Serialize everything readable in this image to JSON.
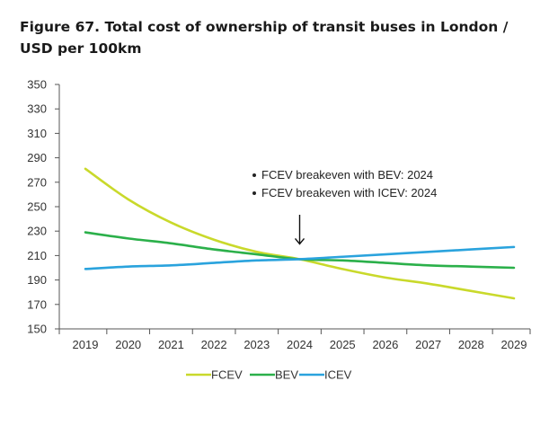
{
  "title": "Figure 67. Total cost of ownership of transit buses in London / USD per 100km",
  "chart_data": {
    "type": "line",
    "title": "Figure 67. Total cost of ownership of transit buses in London / USD per 100km",
    "xlabel": "",
    "ylabel": "",
    "x": [
      "2019",
      "2020",
      "2021",
      "2022",
      "2023",
      "2024",
      "2025",
      "2026",
      "2027",
      "2028",
      "2029"
    ],
    "ylim": [
      150,
      350
    ],
    "yticks": [
      150,
      170,
      190,
      210,
      230,
      250,
      270,
      290,
      310,
      330,
      350
    ],
    "grid": false,
    "legend_position": "bottom",
    "series": [
      {
        "name": "FCEV",
        "color": "#c9d92b",
        "values": [
          281,
          256,
          237,
          223,
          213,
          207,
          199,
          192,
          187,
          181,
          175
        ]
      },
      {
        "name": "BEV",
        "color": "#2bb04a",
        "values": [
          229,
          224,
          220,
          215,
          211,
          207,
          206,
          204,
          202,
          201,
          200
        ]
      },
      {
        "name": "ICEV",
        "color": "#2aa3dd",
        "values": [
          199,
          201,
          202,
          204,
          206,
          207,
          209,
          211,
          213,
          215,
          217
        ]
      }
    ],
    "annotations": [
      {
        "text": "FCEV breakeven with BEV: 2024"
      },
      {
        "text": "FCEV breakeven with ICEV: 2024"
      }
    ],
    "arrow_at": {
      "x": "2024",
      "y": 207
    }
  }
}
